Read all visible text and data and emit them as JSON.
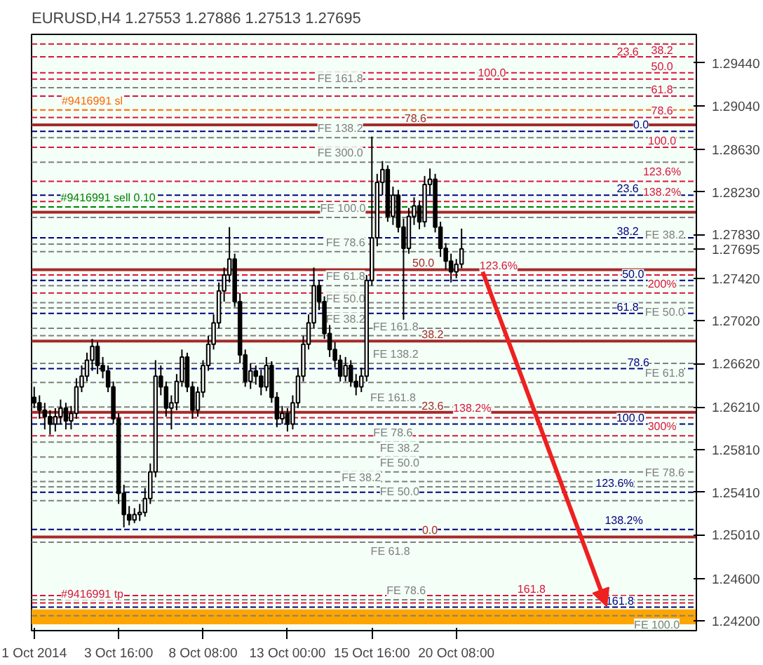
{
  "chart_data": {
    "type": "candlestick",
    "title": "EURUSD,H4  1.27553 1.27886 1.27513 1.27695",
    "categories": [
      "1 Oct 2014",
      null,
      null,
      null,
      null,
      null,
      null,
      null,
      null,
      null,
      null,
      null,
      null,
      null,
      null,
      null,
      "3 Oct 16:00",
      null,
      null,
      null,
      null,
      null,
      null,
      null,
      null,
      null,
      null,
      null,
      null,
      null,
      null,
      null,
      "8 Oct 08:00",
      null,
      null,
      null,
      null,
      null,
      null,
      null,
      null,
      null,
      null,
      null,
      null,
      null,
      null,
      null,
      "13 Oct 00:00",
      null,
      null,
      null,
      null,
      null,
      null,
      null,
      null,
      null,
      null,
      null,
      null,
      null,
      null,
      null,
      "15 Oct 16:00",
      null,
      null,
      null,
      null,
      null,
      null,
      null,
      null,
      null,
      null,
      null,
      null,
      null,
      null,
      null,
      "20 Oct 08:00",
      null,
      null,
      null,
      null,
      null,
      null,
      null,
      null,
      null,
      null,
      null,
      null,
      null,
      null,
      null,
      null,
      null,
      null,
      null,
      null,
      null,
      null,
      null,
      null,
      null,
      null,
      null,
      null,
      null,
      null,
      null,
      null,
      null,
      null,
      null,
      null,
      null,
      null,
      null,
      null,
      null,
      null,
      null,
      null,
      null
    ],
    "ohlc": [
      [
        1.263,
        1.264,
        1.262,
        1.2625
      ],
      [
        1.2625,
        1.2632,
        1.261,
        1.2618
      ],
      [
        1.2618,
        1.2625,
        1.26,
        1.2612
      ],
      [
        1.2612,
        1.2618,
        1.2595,
        1.2605
      ],
      [
        1.2605,
        1.262,
        1.2598,
        1.2612
      ],
      [
        1.2612,
        1.2628,
        1.2605,
        1.262
      ],
      [
        1.262,
        1.2625,
        1.26,
        1.2608
      ],
      [
        1.2608,
        1.2622,
        1.26,
        1.2615
      ],
      [
        1.2615,
        1.2648,
        1.261,
        1.264
      ],
      [
        1.264,
        1.266,
        1.2635,
        1.265
      ],
      [
        1.265,
        1.2672,
        1.2645,
        1.2665
      ],
      [
        1.2665,
        1.2685,
        1.2655,
        1.2678
      ],
      [
        1.2678,
        1.2682,
        1.2652,
        1.266
      ],
      [
        1.266,
        1.2668,
        1.2648,
        1.2655
      ],
      [
        1.2655,
        1.266,
        1.2635,
        1.264
      ],
      [
        1.264,
        1.2645,
        1.2605,
        1.261
      ],
      [
        1.261,
        1.2615,
        1.253,
        1.254
      ],
      [
        1.254,
        1.2548,
        1.2508,
        1.252
      ],
      [
        1.252,
        1.2528,
        1.251,
        1.2515
      ],
      [
        1.2515,
        1.2526,
        1.2512,
        1.252
      ],
      [
        1.252,
        1.253,
        1.2514,
        1.2522
      ],
      [
        1.2522,
        1.2545,
        1.2518,
        1.2535
      ],
      [
        1.2535,
        1.2568,
        1.253,
        1.256
      ],
      [
        1.256,
        1.2665,
        1.2555,
        1.265
      ],
      [
        1.265,
        1.266,
        1.2632,
        1.264
      ],
      [
        1.264,
        1.2645,
        1.2612,
        1.262
      ],
      [
        1.262,
        1.2632,
        1.26,
        1.2625
      ],
      [
        1.2625,
        1.2652,
        1.2618,
        1.2645
      ],
      [
        1.2645,
        1.2675,
        1.264,
        1.2668
      ],
      [
        1.2668,
        1.2672,
        1.2635,
        1.264
      ],
      [
        1.264,
        1.2645,
        1.261,
        1.2618
      ],
      [
        1.2618,
        1.264,
        1.2612,
        1.2635
      ],
      [
        1.2635,
        1.2665,
        1.263,
        1.266
      ],
      [
        1.266,
        1.2688,
        1.2655,
        1.268
      ],
      [
        1.268,
        1.2708,
        1.2675,
        1.27
      ],
      [
        1.27,
        1.2738,
        1.2695,
        1.273
      ],
      [
        1.273,
        1.2752,
        1.272,
        1.2745
      ],
      [
        1.2745,
        1.279,
        1.2738,
        1.276
      ],
      [
        1.276,
        1.2765,
        1.2715,
        1.272
      ],
      [
        1.272,
        1.2728,
        1.2662,
        1.267
      ],
      [
        1.267,
        1.2675,
        1.264,
        1.2645
      ],
      [
        1.2645,
        1.2662,
        1.2638,
        1.2655
      ],
      [
        1.2655,
        1.266,
        1.2642,
        1.265
      ],
      [
        1.265,
        1.2656,
        1.2632,
        1.264
      ],
      [
        1.264,
        1.2668,
        1.2636,
        1.266
      ],
      [
        1.266,
        1.2664,
        1.2625,
        1.263
      ],
      [
        1.263,
        1.2635,
        1.2602,
        1.261
      ],
      [
        1.261,
        1.2622,
        1.2605,
        1.2615
      ],
      [
        1.2615,
        1.262,
        1.2598,
        1.2605
      ],
      [
        1.2605,
        1.2632,
        1.26,
        1.2625
      ],
      [
        1.2625,
        1.2658,
        1.262,
        1.265
      ],
      [
        1.265,
        1.2688,
        1.2645,
        1.268
      ],
      [
        1.268,
        1.2708,
        1.2675,
        1.27
      ],
      [
        1.27,
        1.2752,
        1.2695,
        1.2735
      ],
      [
        1.2735,
        1.274,
        1.2712,
        1.272
      ],
      [
        1.272,
        1.2725,
        1.2685,
        1.269
      ],
      [
        1.269,
        1.2698,
        1.2668,
        1.2675
      ],
      [
        1.2675,
        1.2682,
        1.2658,
        1.2665
      ],
      [
        1.2665,
        1.267,
        1.2645,
        1.265
      ],
      [
        1.265,
        1.2668,
        1.2645,
        1.266
      ],
      [
        1.266,
        1.2665,
        1.264,
        1.2645
      ],
      [
        1.2645,
        1.2652,
        1.2632,
        1.264
      ],
      [
        1.264,
        1.2658,
        1.2635,
        1.265
      ],
      [
        1.265,
        1.2745,
        1.2645,
        1.274
      ],
      [
        1.274,
        1.2875,
        1.2735,
        1.278
      ],
      [
        1.278,
        1.284,
        1.2772,
        1.2832
      ],
      [
        1.2832,
        1.2852,
        1.282,
        1.2844
      ],
      [
        1.2844,
        1.2848,
        1.2795,
        1.28
      ],
      [
        1.28,
        1.2828,
        1.2792,
        1.282
      ],
      [
        1.282,
        1.2825,
        1.2785,
        1.279
      ],
      [
        1.279,
        1.2798,
        1.2703,
        1.277
      ],
      [
        1.277,
        1.2808,
        1.2765,
        1.28
      ],
      [
        1.28,
        1.2818,
        1.2792,
        1.281
      ],
      [
        1.281,
        1.2815,
        1.2788,
        1.2795
      ],
      [
        1.2795,
        1.2838,
        1.279,
        1.283
      ],
      [
        1.283,
        1.2845,
        1.282,
        1.2835
      ],
      [
        1.2835,
        1.284,
        1.2785,
        1.279
      ],
      [
        1.279,
        1.2795,
        1.2762,
        1.277
      ],
      [
        1.277,
        1.2775,
        1.275,
        1.2758
      ],
      [
        1.2758,
        1.2765,
        1.2738,
        1.2748
      ],
      [
        1.2748,
        1.276,
        1.2742,
        1.2755
      ],
      [
        1.27553,
        1.27886,
        1.27513,
        1.27695
      ],
      null,
      null,
      null,
      null,
      null,
      null,
      null,
      null,
      null,
      null,
      null,
      null,
      null,
      null,
      null,
      null,
      null,
      null,
      null,
      null,
      null,
      null,
      null,
      null,
      null,
      null,
      null,
      null,
      null,
      null,
      null,
      null,
      null,
      null,
      null,
      null,
      null,
      null,
      null,
      null,
      null,
      null,
      null,
      null
    ],
    "ylim": [
      1.2411,
      1.2971
    ],
    "yticks": [
      {
        "value": 1.2944,
        "label": "1.29440"
      },
      {
        "value": 1.2904,
        "label": "1.29040"
      },
      {
        "value": 1.2863,
        "label": "1.28630"
      },
      {
        "value": 1.2823,
        "label": "1.28230"
      },
      {
        "value": 1.2783,
        "label": "1.27830"
      },
      {
        "value": 1.2742,
        "label": "1.27420"
      },
      {
        "value": 1.2702,
        "label": "1.27020"
      },
      {
        "value": 1.2662,
        "label": "1.26620"
      },
      {
        "value": 1.2621,
        "label": "1.26210"
      },
      {
        "value": 1.2581,
        "label": "1.25810"
      },
      {
        "value": 1.2541,
        "label": "1.25410"
      },
      {
        "value": 1.2501,
        "label": "1.25010"
      },
      {
        "value": 1.246,
        "label": "1.24600"
      },
      {
        "value": 1.242,
        "label": "1.24200"
      },
      {
        "value": 1.27695,
        "label": "1.27695"
      }
    ],
    "ref_lines": [
      {
        "axis": "y",
        "value": 1.2962,
        "color": "#dc143c",
        "line_style": "dashed"
      },
      {
        "axis": "y",
        "value": 1.295,
        "color": "#dc143c",
        "line_style": "dashed"
      },
      {
        "axis": "y",
        "value": 1.2935,
        "color": "#dc143c",
        "line_style": "dashed"
      },
      {
        "axis": "y",
        "value": 1.2929,
        "color": "#dc143c",
        "line_style": "dashed"
      },
      {
        "axis": "y",
        "value": 1.2921,
        "color": "#808080",
        "line_style": "dashed"
      },
      {
        "axis": "y",
        "value": 1.2913,
        "color": "#dc143c",
        "line_style": "dashed"
      },
      {
        "axis": "y",
        "value": 1.29,
        "color": "#ff6600",
        "line_style": "dashed"
      },
      {
        "axis": "y",
        "value": 1.2893,
        "color": "#dc143c",
        "line_style": "dashed"
      },
      {
        "axis": "y",
        "value": 1.2886,
        "color": "#a52a2a",
        "line_style": "solid"
      },
      {
        "axis": "y",
        "value": 1.288,
        "color": "#000080",
        "line_style": "dashed"
      },
      {
        "axis": "y",
        "value": 1.2874,
        "color": "#808080",
        "line_style": "dashed"
      },
      {
        "axis": "y",
        "value": 1.2865,
        "color": "#dc143c",
        "line_style": "dashed"
      },
      {
        "axis": "y",
        "value": 1.2851,
        "color": "#808080",
        "line_style": "dashed"
      },
      {
        "axis": "y",
        "value": 1.2833,
        "color": "#dc143c",
        "line_style": "dashed"
      },
      {
        "axis": "y",
        "value": 1.282,
        "color": "#000080",
        "line_style": "dashed"
      },
      {
        "axis": "y",
        "value": 1.2814,
        "color": "#dc143c",
        "line_style": "dashed"
      },
      {
        "axis": "y",
        "value": 1.2809,
        "color": "#008000",
        "line_style": "dashed"
      },
      {
        "axis": "y",
        "value": 1.2804,
        "color": "#a52a2a",
        "line_style": "solid"
      },
      {
        "axis": "y",
        "value": 1.2799,
        "color": "#808080",
        "line_style": "dashed"
      },
      {
        "axis": "y",
        "value": 1.278,
        "color": "#000080",
        "line_style": "dashed"
      },
      {
        "axis": "y",
        "value": 1.2774,
        "color": "#808080",
        "line_style": "dashed"
      },
      {
        "axis": "y",
        "value": 1.2767,
        "color": "#808080",
        "line_style": "dashed"
      },
      {
        "axis": "y",
        "value": 1.275,
        "color": "#a52a2a",
        "line_style": "solid"
      },
      {
        "axis": "y",
        "value": 1.2745,
        "color": "#dc143c",
        "line_style": "dashed"
      },
      {
        "axis": "y",
        "value": 1.274,
        "color": "#000080",
        "line_style": "dashed"
      },
      {
        "axis": "y",
        "value": 1.2735,
        "color": "#808080",
        "line_style": "dashed"
      },
      {
        "axis": "y",
        "value": 1.2728,
        "color": "#dc143c",
        "line_style": "dashed"
      },
      {
        "axis": "y",
        "value": 1.2719,
        "color": "#808080",
        "line_style": "dashed"
      },
      {
        "axis": "y",
        "value": 1.2714,
        "color": "#808080",
        "line_style": "dashed"
      },
      {
        "axis": "y",
        "value": 1.2709,
        "color": "#000080",
        "line_style": "dashed"
      },
      {
        "axis": "y",
        "value": 1.2695,
        "color": "#808080",
        "line_style": "dashed"
      },
      {
        "axis": "y",
        "value": 1.2688,
        "color": "#808080",
        "line_style": "dashed"
      },
      {
        "axis": "y",
        "value": 1.2683,
        "color": "#a52a2a",
        "line_style": "solid"
      },
      {
        "axis": "y",
        "value": 1.2662,
        "color": "#808080",
        "line_style": "dashed"
      },
      {
        "axis": "y",
        "value": 1.2657,
        "color": "#000080",
        "line_style": "dashed"
      },
      {
        "axis": "y",
        "value": 1.2644,
        "color": "#808080",
        "line_style": "dashed"
      },
      {
        "axis": "y",
        "value": 1.2621,
        "color": "#808080",
        "line_style": "dashed"
      },
      {
        "axis": "y",
        "value": 1.2616,
        "color": "#a52a2a",
        "line_style": "solid"
      },
      {
        "axis": "y",
        "value": 1.2611,
        "color": "#dc143c",
        "line_style": "dashed"
      },
      {
        "axis": "y",
        "value": 1.2605,
        "color": "#000080",
        "line_style": "dashed"
      },
      {
        "axis": "y",
        "value": 1.2594,
        "color": "#dc143c",
        "line_style": "dashed"
      },
      {
        "axis": "y",
        "value": 1.2588,
        "color": "#808080",
        "line_style": "dashed"
      },
      {
        "axis": "y",
        "value": 1.2574,
        "color": "#808080",
        "line_style": "dashed"
      },
      {
        "axis": "y",
        "value": 1.256,
        "color": "#808080",
        "line_style": "dashed"
      },
      {
        "axis": "y",
        "value": 1.2551,
        "color": "#808080",
        "line_style": "dashed"
      },
      {
        "axis": "y",
        "value": 1.2546,
        "color": "#808080",
        "line_style": "dashed"
      },
      {
        "axis": "y",
        "value": 1.2541,
        "color": "#000080",
        "line_style": "dashed"
      },
      {
        "axis": "y",
        "value": 1.2533,
        "color": "#808080",
        "line_style": "dashed"
      },
      {
        "axis": "y",
        "value": 1.2506,
        "color": "#000080",
        "line_style": "dashed"
      },
      {
        "axis": "y",
        "value": 1.2499,
        "color": "#a52a2a",
        "line_style": "solid"
      },
      {
        "axis": "y",
        "value": 1.2494,
        "color": "#808080",
        "line_style": "dashed"
      },
      {
        "axis": "y",
        "value": 1.2444,
        "color": "#dc143c",
        "line_style": "dashed"
      },
      {
        "axis": "y",
        "value": 1.244,
        "color": "#808080",
        "line_style": "dashed"
      },
      {
        "axis": "y",
        "value": 1.2437,
        "color": "#dc143c",
        "line_style": "dashed"
      },
      {
        "axis": "y",
        "value": 1.2433,
        "color": "#000080",
        "line_style": "dashed"
      },
      {
        "axis": "y",
        "value": 1.2425,
        "color": "#808080",
        "line_style": "dashed"
      }
    ],
    "bands": [
      {
        "axis": "y",
        "from": 1.2417,
        "to": 1.2431,
        "color": "#ffa500"
      }
    ],
    "annotations": [
      {
        "text": "23.6",
        "y": 1.2962
      },
      {
        "text": "38.2",
        "y": 1.295
      },
      {
        "text": "50.0",
        "y": 1.2935
      },
      {
        "text": "100.0",
        "y": 1.2929
      },
      {
        "text": "FE 161.8",
        "y": 1.2921
      },
      {
        "text": "61.8",
        "y": 1.2913
      },
      {
        "text": "#9416991 sl",
        "y": 1.29
      },
      {
        "text": "78.6",
        "y": 1.2893
      },
      {
        "text": "78.6",
        "y": 1.2886
      },
      {
        "text": "0.0",
        "y": 1.288
      },
      {
        "text": "FE 138.2",
        "y": 1.2874
      },
      {
        "text": "100.0",
        "y": 1.2865
      },
      {
        "text": "FE 300.0",
        "y": 1.2851
      },
      {
        "text": "123.6%",
        "y": 1.2833
      },
      {
        "text": "23.6",
        "y": 1.282
      },
      {
        "text": "138.2%",
        "y": 1.2814
      },
      {
        "text": "#9416991 sell 0.10",
        "y": 1.2809
      },
      {
        "text": "FE 100.0",
        "y": 1.2799
      },
      {
        "text": "38.2",
        "y": 1.278
      },
      {
        "text": "FE 38.2",
        "y": 1.2774
      },
      {
        "text": "FE 78.6",
        "y": 1.2767
      },
      {
        "text": "50.0",
        "y": 1.275
      },
      {
        "text": "123.6%",
        "y": 1.2745
      },
      {
        "text": "50.0",
        "y": 1.274
      },
      {
        "text": "FE 61.8",
        "y": 1.2735
      },
      {
        "text": "200%",
        "y": 1.2728
      },
      {
        "text": "FE 50.0",
        "y": 1.2719
      },
      {
        "text": "FE 50.0",
        "y": 1.2714
      },
      {
        "text": "61.8",
        "y": 1.2709
      },
      {
        "text": "FE 38.2",
        "y": 1.2695
      },
      {
        "text": "FE 161.8",
        "y": 1.2688
      },
      {
        "text": "38.2",
        "y": 1.2683
      },
      {
        "text": "FE 138.2",
        "y": 1.2662
      },
      {
        "text": "78.6",
        "y": 1.2657
      },
      {
        "text": "FE 61.8",
        "y": 1.2644
      },
      {
        "text": "FE 161.8",
        "y": 1.2621
      },
      {
        "text": "23.6",
        "y": 1.2616
      },
      {
        "text": "138.2%",
        "y": 1.2611
      },
      {
        "text": "100.0",
        "y": 1.2605
      },
      {
        "text": "300%",
        "y": 1.2594
      },
      {
        "text": "FE 78.6",
        "y": 1.2588
      },
      {
        "text": "FE 38.2",
        "y": 1.2574
      },
      {
        "text": "FE 50.0",
        "y": 1.256
      },
      {
        "text": "FE 78.6",
        "y": 1.2551
      },
      {
        "text": "FE 38.2",
        "y": 1.2546
      },
      {
        "text": "123.6%",
        "y": 1.2541
      },
      {
        "text": "FE 50.0",
        "y": 1.2533
      },
      {
        "text": "138.2%",
        "y": 1.2506
      },
      {
        "text": "0.0",
        "y": 1.2499
      },
      {
        "text": "FE 61.8",
        "y": 1.2494
      },
      {
        "text": "161.8",
        "y": 1.2444
      },
      {
        "text": "FE 78.6",
        "y": 1.244
      },
      {
        "text": "#9416991 tp",
        "y": 1.2437
      },
      {
        "text": "161.8",
        "y": 1.2433
      },
      {
        "text": "FE 100.0",
        "y": 1.2425
      }
    ]
  }
}
